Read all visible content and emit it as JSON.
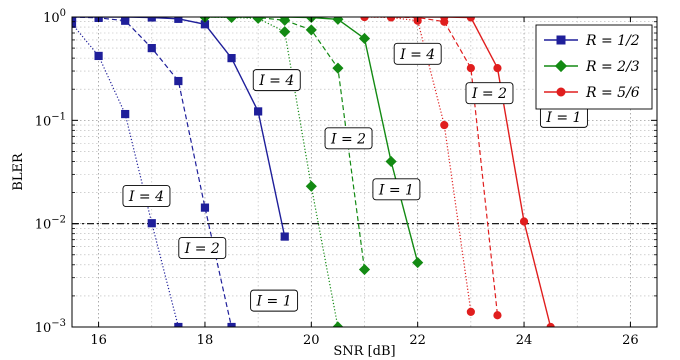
{
  "chart_data": {
    "type": "line",
    "title": "",
    "xlabel": "SNR [dB]",
    "ylabel": "BLER",
    "xlim": [
      15.5,
      26.5
    ],
    "ylim": [
      0.001,
      1
    ],
    "yscale": "log",
    "grid": true,
    "xticks": [
      16,
      18,
      20,
      22,
      24,
      26
    ],
    "xtick_labels": [
      "16",
      "18",
      "20",
      "22",
      "24",
      "26"
    ],
    "yticks": [
      0.001,
      0.01,
      0.1,
      1
    ],
    "ytick_labels": [
      {
        "base": "10",
        "exp": "−3"
      },
      {
        "base": "10",
        "exp": "−2"
      },
      {
        "base": "10",
        "exp": "−1"
      },
      {
        "base": "10",
        "exp": "0"
      }
    ],
    "target_line": {
      "y": 0.01,
      "style": "dash-dot"
    },
    "legend": {
      "position": "top-right",
      "entries": [
        {
          "label": "R = 1/2",
          "color": "#1f1f9a",
          "marker": "square"
        },
        {
          "label": "R = 2/3",
          "color": "#138a13",
          "marker": "diamond"
        },
        {
          "label": "R = 5/6",
          "color": "#e01e1e",
          "marker": "circle"
        }
      ]
    },
    "series": [
      {
        "rate": "R = 1/2",
        "iterations": "I = 4",
        "color": "#1f1f9a",
        "marker": "square",
        "dash": "dotted",
        "x": [
          15.5,
          16.0,
          16.5,
          17.0,
          17.5
        ],
        "y": [
          0.86,
          0.42,
          0.115,
          0.0101,
          0.001
        ]
      },
      {
        "rate": "R = 1/2",
        "iterations": "I = 2",
        "color": "#1f1f9a",
        "marker": "square",
        "dash": "dashed",
        "x": [
          15.5,
          16.0,
          16.5,
          17.0,
          17.5,
          18.0,
          18.5
        ],
        "y": [
          1.0,
          0.98,
          0.92,
          0.5,
          0.24,
          0.0143,
          0.001
        ]
      },
      {
        "rate": "R = 1/2",
        "iterations": "I = 1",
        "color": "#1f1f9a",
        "marker": "square",
        "dash": "solid",
        "x": [
          15.5,
          16.0,
          16.5,
          17.0,
          17.5,
          18.0,
          18.5,
          19.0,
          19.5
        ],
        "y": [
          1.0,
          1.0,
          1.0,
          0.99,
          0.96,
          0.85,
          0.4,
          0.122,
          0.0075
        ]
      },
      {
        "rate": "R = 2/3",
        "iterations": "I = 4",
        "color": "#138a13",
        "marker": "diamond",
        "dash": "dotted",
        "x": [
          18.0,
          18.5,
          19.0,
          19.5,
          20.0,
          20.5
        ],
        "y": [
          1.0,
          0.99,
          0.97,
          0.72,
          0.023,
          0.001
        ]
      },
      {
        "rate": "R = 2/3",
        "iterations": "I = 2",
        "color": "#138a13",
        "marker": "diamond",
        "dash": "dashed",
        "x": [
          18.0,
          18.5,
          19.0,
          19.5,
          20.0,
          20.5,
          21.0
        ],
        "y": [
          1.0,
          1.0,
          0.99,
          0.93,
          0.75,
          0.32,
          0.0036
        ]
      },
      {
        "rate": "R = 2/3",
        "iterations": "I = 1",
        "color": "#138a13",
        "marker": "diamond",
        "dash": "solid",
        "x": [
          18.0,
          18.5,
          19.0,
          19.5,
          20.0,
          20.5,
          21.0,
          21.5,
          22.0
        ],
        "y": [
          1.0,
          1.0,
          1.0,
          1.0,
          0.99,
          0.95,
          0.62,
          0.04,
          0.0042
        ]
      },
      {
        "rate": "R = 5/6",
        "iterations": "I = 4",
        "color": "#e01e1e",
        "marker": "circle",
        "dash": "dotted",
        "x": [
          21.0,
          21.5,
          22.0,
          22.5,
          23.0
        ],
        "y": [
          1.0,
          0.99,
          0.92,
          0.09,
          0.0014
        ]
      },
      {
        "rate": "R = 5/6",
        "iterations": "I = 2",
        "color": "#e01e1e",
        "marker": "circle",
        "dash": "dashed",
        "x": [
          21.0,
          21.5,
          22.0,
          22.5,
          23.0,
          23.5
        ],
        "y": [
          1.0,
          1.0,
          0.99,
          0.9,
          0.32,
          0.0013
        ]
      },
      {
        "rate": "R = 5/6",
        "iterations": "I = 1",
        "color": "#e01e1e",
        "marker": "circle",
        "dash": "solid",
        "x": [
          21.5,
          22.0,
          22.5,
          23.0,
          23.5,
          24.0,
          24.5
        ],
        "y": [
          1.0,
          1.0,
          1.0,
          0.99,
          0.32,
          0.0105,
          0.001
        ]
      }
    ],
    "annotations": [
      {
        "text": "I = 4",
        "x": 16.9,
        "y": 0.0185
      },
      {
        "text": "I = 2",
        "x": 17.95,
        "y": 0.0058
      },
      {
        "text": "I = 1",
        "x": 19.3,
        "y": 0.0018
      },
      {
        "text": "I = 4",
        "x": 19.35,
        "y": 0.245
      },
      {
        "text": "I = 2",
        "x": 20.7,
        "y": 0.067
      },
      {
        "text": "I = 1",
        "x": 21.6,
        "y": 0.0215
      },
      {
        "text": "I = 4",
        "x": 22.0,
        "y": 0.44
      },
      {
        "text": "I = 2",
        "x": 23.35,
        "y": 0.183
      },
      {
        "text": "I = 1",
        "x": 24.75,
        "y": 0.108
      }
    ]
  }
}
